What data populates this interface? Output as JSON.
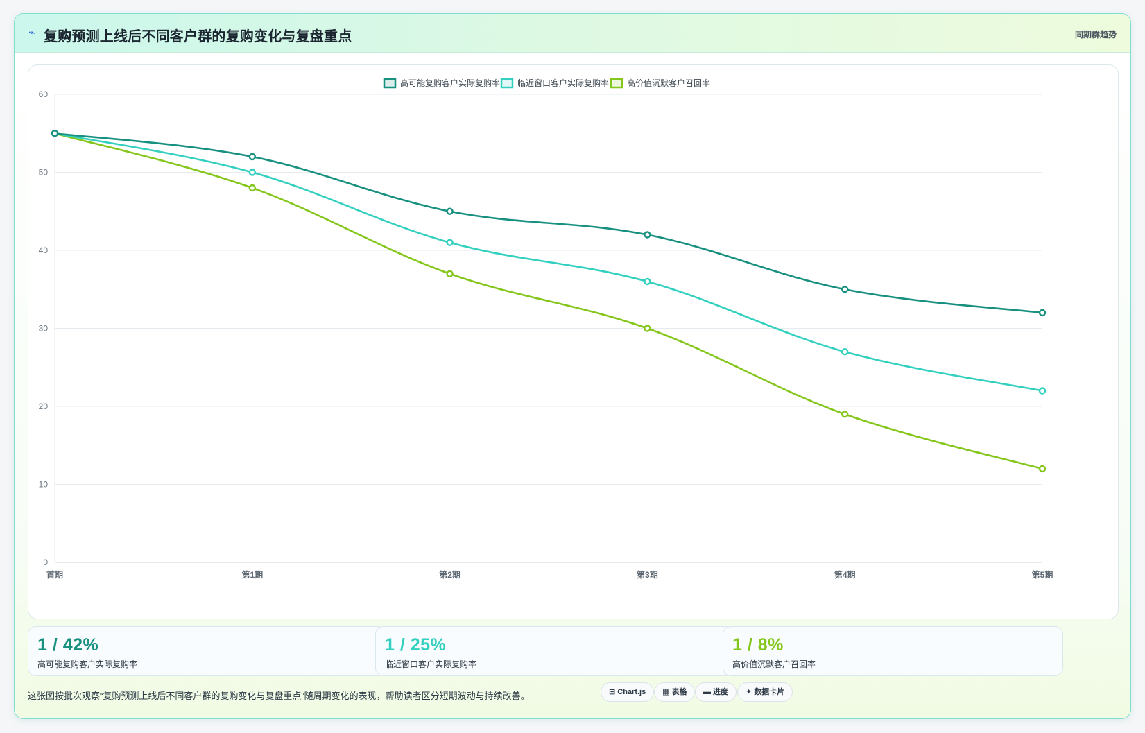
{
  "header": {
    "icon": "trend-line-icon",
    "title": "复购预测上线后不同客户群的复购变化与复盘重点",
    "tag": "同期群趋势"
  },
  "chart_data": {
    "type": "line",
    "categories": [
      "首期",
      "第1期",
      "第2期",
      "第3期",
      "第4期",
      "第5期"
    ],
    "ylim": [
      0,
      60
    ],
    "yticks": [
      0,
      10,
      20,
      30,
      40,
      50,
      60
    ],
    "grid": true,
    "legend_position": "top-center",
    "series": [
      {
        "name": "高可能复购客户实际复购率",
        "color": "#17907f",
        "values": [
          55,
          52,
          45,
          42,
          35,
          32
        ]
      },
      {
        "name": "临近窗口客户实际复购率",
        "color": "#33d0c0",
        "values": [
          55,
          50,
          41,
          36,
          27,
          22
        ]
      },
      {
        "name": "高价值沉默客户召回率",
        "color": "#84c61b",
        "values": [
          55,
          48,
          37,
          30,
          19,
          12
        ]
      }
    ]
  },
  "stats": [
    {
      "value": "1 / 42%",
      "label": "高可能复购客户实际复购率",
      "color": "#17907f"
    },
    {
      "value": "1 / 25%",
      "label": "临近窗口客户实际复购率",
      "color": "#33d0c0"
    },
    {
      "value": "1 / 8%",
      "label": "高价值沉默客户召回率",
      "color": "#84c61b"
    }
  ],
  "footer": {
    "description": "这张图按批次观察“复购预测上线后不同客户群的复购变化与复盘重点”随周期变化的表现，帮助读者区分短期波动与持续改善。",
    "chips": [
      {
        "icon": "chart-icon",
        "label": "⊟ Chart.js"
      },
      {
        "icon": "table-icon",
        "label": "▦ 表格"
      },
      {
        "icon": "progress-icon",
        "label": "▬ 进度"
      },
      {
        "icon": "card-icon",
        "label": "✦ 数据卡片"
      }
    ]
  }
}
